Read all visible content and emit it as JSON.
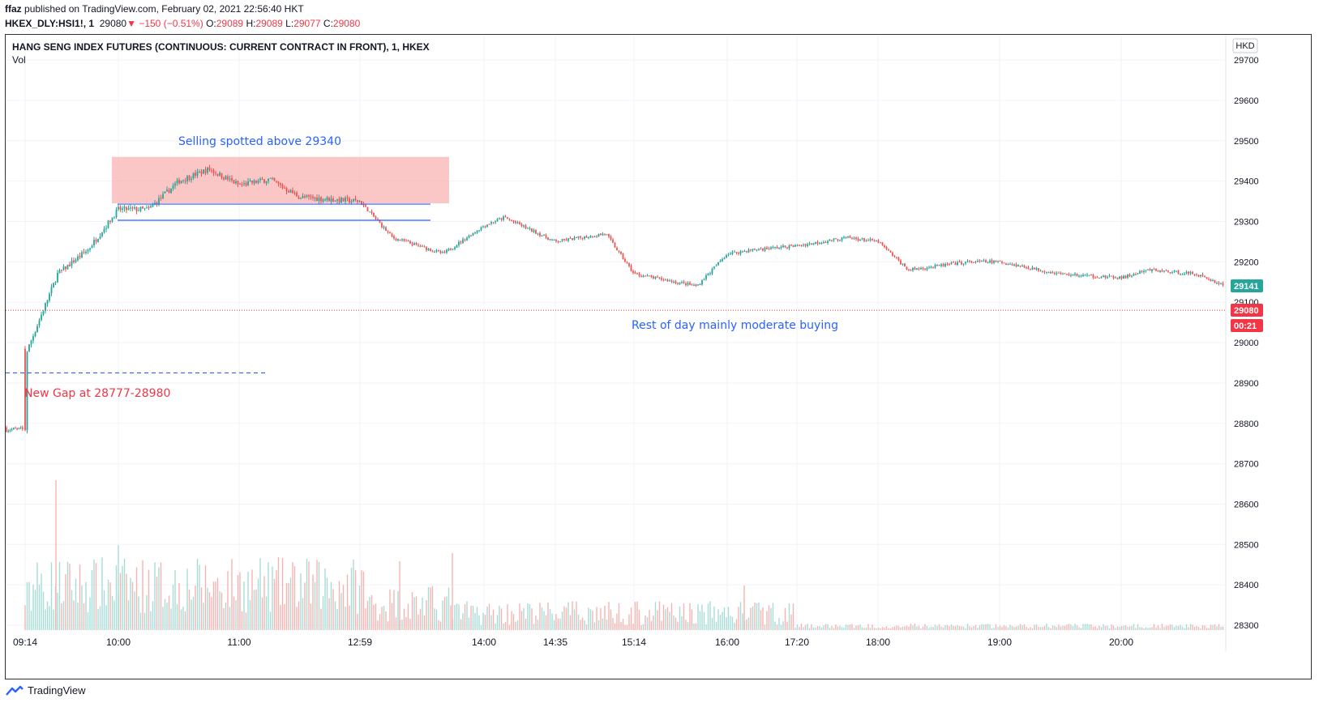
{
  "header": {
    "author": "ffaz",
    "published_text": "published on TradingView.com, February 02, 2021 22:56:40 HKT",
    "symbol": "HKEX_DLY:HSI1!, 1",
    "last": "29080",
    "change": "−150 (−0.51%)",
    "o_label": "O:",
    "o_value": "29089",
    "h_label": "H:",
    "h_value": "29089",
    "l_label": "L:",
    "l_value": "29077",
    "c_label": "C:",
    "c_value": "29080"
  },
  "legend": {
    "title": "HANG SENG INDEX FUTURES (CONTINUOUS: CURRENT CONTRACT IN FRONT), 1, HKEX",
    "vol_label": "Vol"
  },
  "currency": "HKD",
  "price_badges": {
    "current_green": "29141",
    "current_red": "29080",
    "countdown": "00:21"
  },
  "annotations": {
    "selling": "Selling spotted above 29340",
    "rest_of_day": "Rest of day mainly moderate buying",
    "gap": "New Gap at 28777-28980"
  },
  "footer": {
    "brand": "TradingView"
  },
  "colors": {
    "up": "#26a69a",
    "down": "#ef5350",
    "annotation_blue": "#2962ff",
    "annotation_red": "#f23645",
    "zone_fill": "#f8b3b3"
  },
  "chart_data": {
    "type": "candlestick",
    "title": "HANG SENG INDEX FUTURES (CONTINUOUS: CURRENT CONTRACT IN FRONT), 1, HKEX",
    "ylim": [
      28280,
      29740
    ],
    "y_ticks": [
      29700,
      29600,
      29500,
      29400,
      29300,
      29200,
      29100,
      29000,
      28900,
      28800,
      28700,
      28600,
      28500,
      28400,
      28300
    ],
    "x_ticks": [
      "09:14",
      "10:00",
      "11:00",
      "12:59",
      "14:00",
      "14:35",
      "15:14",
      "16:00",
      "17:20",
      "18:00",
      "19:00",
      "20:00"
    ],
    "grid": true,
    "price_path": [
      {
        "t": "09:14",
        "price": 28785
      },
      {
        "t": "09:15",
        "price": 28980
      },
      {
        "t": "09:30",
        "price": 29170
      },
      {
        "t": "09:45",
        "price": 29230
      },
      {
        "t": "10:00",
        "price": 29330
      },
      {
        "t": "10:15",
        "price": 29330
      },
      {
        "t": "10:30",
        "price": 29400
      },
      {
        "t": "10:45",
        "price": 29430
      },
      {
        "t": "11:00",
        "price": 29390
      },
      {
        "t": "11:30",
        "price": 29405
      },
      {
        "t": "12:00",
        "price": 29360
      },
      {
        "t": "12:59",
        "price": 29350
      },
      {
        "t": "13:15",
        "price": 29260
      },
      {
        "t": "13:40",
        "price": 29220
      },
      {
        "t": "14:00",
        "price": 29290
      },
      {
        "t": "14:10",
        "price": 29310
      },
      {
        "t": "14:35",
        "price": 29250
      },
      {
        "t": "15:00",
        "price": 29270
      },
      {
        "t": "15:14",
        "price": 29170
      },
      {
        "t": "15:45",
        "price": 29140
      },
      {
        "t": "16:00",
        "price": 29220
      },
      {
        "t": "16:30",
        "price": 29230
      },
      {
        "t": "17:20",
        "price": 29240
      },
      {
        "t": "17:45",
        "price": 29260
      },
      {
        "t": "18:00",
        "price": 29250
      },
      {
        "t": "18:15",
        "price": 29180
      },
      {
        "t": "18:45",
        "price": 29200
      },
      {
        "t": "19:00",
        "price": 29200
      },
      {
        "t": "19:30",
        "price": 29170
      },
      {
        "t": "20:00",
        "price": 29160
      },
      {
        "t": "20:15",
        "price": 29180
      },
      {
        "t": "20:40",
        "price": 29170
      },
      {
        "t": "20:55",
        "price": 29141
      }
    ],
    "levels": {
      "selling_zone": [
        29345,
        29460
      ],
      "upper_line": 29343,
      "lower_line": 29303,
      "gap_line": 28925,
      "last_price_line": 29080
    },
    "volume_note": "Volume bars along the bottom; spike near 09:30 (largest), elevated 09:14–13:45 and around 15:14–16:30, low thereafter"
  }
}
